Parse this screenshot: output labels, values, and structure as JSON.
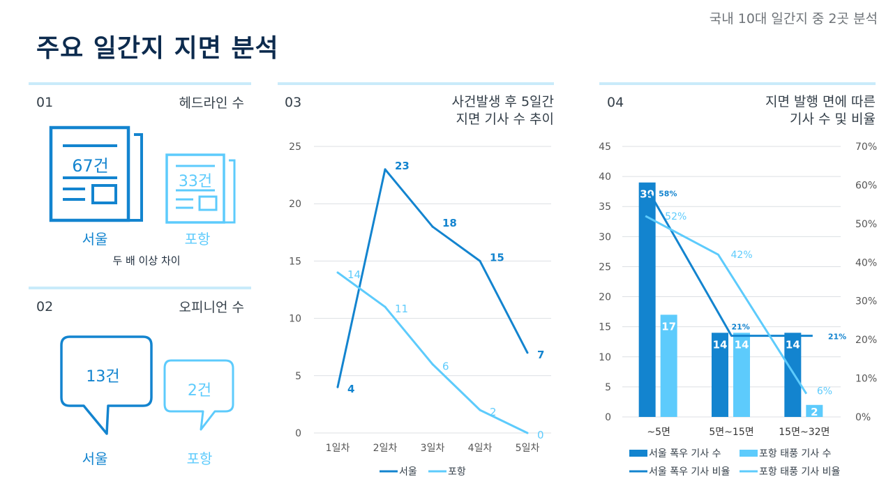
{
  "header": {
    "title": "주요 일간지 지면 분석",
    "subtitle": "국내 10대 일간지 중 2곳 분석"
  },
  "colors": {
    "seoul": "#1384cf",
    "pohang": "#5dcbfc",
    "divider": "#c9ebfa"
  },
  "sections": {
    "s01": {
      "num": "01",
      "title": "헤드라인 수",
      "seoul": {
        "value": "67건",
        "label": "서울"
      },
      "pohang": {
        "value": "33건",
        "label": "포항"
      },
      "note": "두 배 이상 차이"
    },
    "s02": {
      "num": "02",
      "title": "오피니언 수",
      "seoul": {
        "value": "13건",
        "label": "서울"
      },
      "pohang": {
        "value": "2건",
        "label": "포항"
      }
    },
    "s03": {
      "num": "03",
      "title_line1": "사건발생 후 5일간",
      "title_line2": "지면 기사 수 추이"
    },
    "s04": {
      "num": "04",
      "title_line1": "지면 발행 면에 따른",
      "title_line2": "기사 수 및 비율"
    }
  },
  "chart_data": [
    {
      "type": "line",
      "categories": [
        "1일차",
        "2일차",
        "3일차",
        "4일차",
        "5일차"
      ],
      "series": [
        {
          "name": "서울",
          "values": [
            4,
            23,
            18,
            15,
            7
          ]
        },
        {
          "name": "포항",
          "values": [
            14,
            11,
            6,
            2,
            0
          ]
        }
      ],
      "yticks": [
        "0",
        "5",
        "10",
        "15",
        "20",
        "25"
      ],
      "ylim": [
        0,
        25
      ],
      "grid": true,
      "legend": "bottom"
    },
    {
      "type": "bar",
      "categories": [
        "~5면",
        "5면~15면",
        "15면~32면"
      ],
      "bar_series": [
        {
          "name": "서울 폭우 기사 수",
          "values": [
            39,
            14,
            14
          ],
          "labels": [
            "39",
            "14",
            "14"
          ]
        },
        {
          "name": "포항 태풍 기사 수",
          "values": [
            17,
            14,
            2
          ],
          "labels": [
            "17",
            "14",
            "2"
          ]
        }
      ],
      "line_series": [
        {
          "name": "서울 폭우 기사 비율",
          "values": [
            58,
            21,
            21
          ],
          "labels": [
            "58%",
            "21%",
            "21%"
          ]
        },
        {
          "name": "포항 태풍 기사 비율",
          "values": [
            52,
            42,
            6
          ],
          "labels": [
            "52%",
            "42%",
            "6%"
          ]
        }
      ],
      "yticks_left": [
        "0",
        "5",
        "10",
        "15",
        "20",
        "25",
        "30",
        "35",
        "40",
        "45"
      ],
      "yticks_right": [
        "0%",
        "10%",
        "20%",
        "30%",
        "40%",
        "50%",
        "60%",
        "70%"
      ],
      "ylim_left": [
        0,
        45
      ],
      "ylim_right": [
        0,
        70
      ],
      "grid": true,
      "legend": "bottom"
    }
  ]
}
